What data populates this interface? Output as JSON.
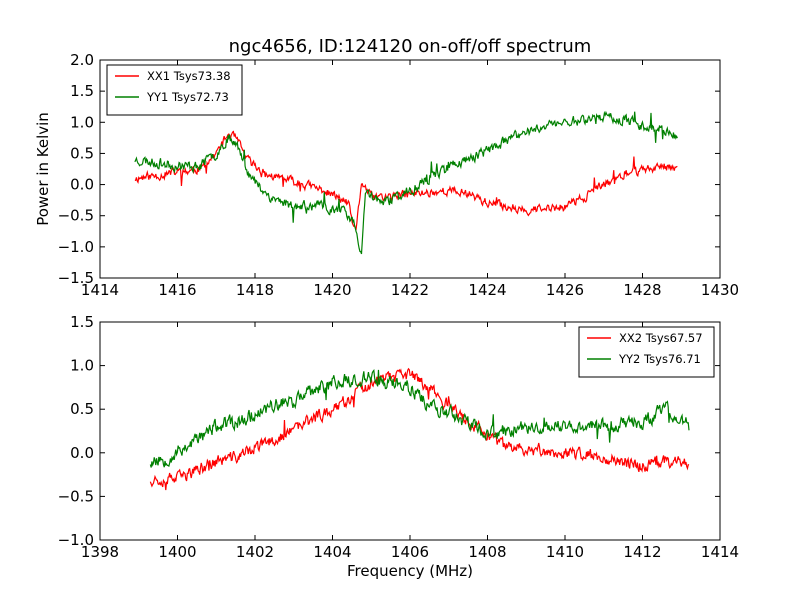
{
  "title": "ngc4656, ID:124120 on-off/off spectrum",
  "chart_data": [
    {
      "type": "line",
      "xlabel": "",
      "ylabel": "Power in Kelvin",
      "xlim": [
        1414,
        1430
      ],
      "ylim": [
        -1.5,
        2.0
      ],
      "xticks": [
        1414,
        1416,
        1418,
        1420,
        1422,
        1424,
        1426,
        1428,
        1430
      ],
      "xtick_labels": [
        "1414",
        "1416",
        "1418",
        "1420",
        "1422",
        "1424",
        "1426",
        "1428",
        "1430"
      ],
      "yticks": [
        -1.5,
        -1.0,
        -0.5,
        0.0,
        0.5,
        1.0,
        1.5,
        2.0
      ],
      "ytick_labels": [
        "−1.5",
        "−1.0",
        "−0.5",
        "0.0",
        "0.5",
        "1.0",
        "1.5",
        "2.0"
      ],
      "grid": false,
      "legend_position": "top-left",
      "x_range": [
        1414.9,
        1428.9
      ],
      "series": [
        {
          "name": "XX1 Tsys73.38",
          "color": "#ff0000",
          "noise": 0.07,
          "seed": 11,
          "points": [
            [
              1414.9,
              0.1
            ],
            [
              1415.5,
              0.15
            ],
            [
              1416.0,
              0.2
            ],
            [
              1416.6,
              0.25
            ],
            [
              1417.0,
              0.5
            ],
            [
              1417.3,
              0.8
            ],
            [
              1417.5,
              0.75
            ],
            [
              1417.8,
              0.4
            ],
            [
              1418.3,
              0.15
            ],
            [
              1419.0,
              0.05
            ],
            [
              1419.8,
              -0.1
            ],
            [
              1420.4,
              -0.3
            ],
            [
              1420.6,
              -0.8
            ],
            [
              1420.75,
              0.05
            ],
            [
              1421.0,
              -0.2
            ],
            [
              1421.5,
              -0.2
            ],
            [
              1422.0,
              -0.15
            ],
            [
              1423.0,
              -0.1
            ],
            [
              1423.6,
              -0.15
            ],
            [
              1424.0,
              -0.3
            ],
            [
              1424.5,
              -0.35
            ],
            [
              1425.0,
              -0.4
            ],
            [
              1425.5,
              -0.4
            ],
            [
              1426.0,
              -0.35
            ],
            [
              1426.5,
              -0.2
            ],
            [
              1427.0,
              0.0
            ],
            [
              1427.5,
              0.15
            ],
            [
              1428.0,
              0.25
            ],
            [
              1428.9,
              0.3
            ]
          ]
        },
        {
          "name": "YY1 Tsys72.73",
          "color": "#008000",
          "noise": 0.08,
          "seed": 23,
          "points": [
            [
              1414.9,
              0.4
            ],
            [
              1415.5,
              0.35
            ],
            [
              1416.0,
              0.3
            ],
            [
              1416.6,
              0.3
            ],
            [
              1417.0,
              0.5
            ],
            [
              1417.3,
              0.75
            ],
            [
              1417.5,
              0.7
            ],
            [
              1417.9,
              0.1
            ],
            [
              1418.4,
              -0.2
            ],
            [
              1419.0,
              -0.35
            ],
            [
              1419.6,
              -0.35
            ],
            [
              1420.2,
              -0.4
            ],
            [
              1420.55,
              -0.6
            ],
            [
              1420.75,
              -1.2
            ],
            [
              1420.85,
              -0.1
            ],
            [
              1421.3,
              -0.3
            ],
            [
              1422.0,
              -0.1
            ],
            [
              1422.5,
              0.1
            ],
            [
              1423.0,
              0.3
            ],
            [
              1423.5,
              0.4
            ],
            [
              1424.0,
              0.55
            ],
            [
              1424.5,
              0.7
            ],
            [
              1425.0,
              0.85
            ],
            [
              1425.5,
              0.95
            ],
            [
              1426.0,
              1.0
            ],
            [
              1426.5,
              1.05
            ],
            [
              1427.0,
              1.1
            ],
            [
              1427.5,
              1.05
            ],
            [
              1428.0,
              0.95
            ],
            [
              1428.5,
              0.9
            ],
            [
              1428.9,
              0.75
            ]
          ]
        }
      ]
    },
    {
      "type": "line",
      "xlabel": "Frequency (MHz)",
      "ylabel": "",
      "xlim": [
        1398,
        1414
      ],
      "ylim": [
        -1.0,
        1.5
      ],
      "xticks": [
        1398,
        1400,
        1402,
        1404,
        1406,
        1408,
        1410,
        1412,
        1414
      ],
      "xtick_labels": [
        "1398",
        "1400",
        "1402",
        "1404",
        "1406",
        "1408",
        "1410",
        "1412",
        "1414"
      ],
      "yticks": [
        -1.0,
        -0.5,
        0.0,
        0.5,
        1.0,
        1.5
      ],
      "ytick_labels": [
        "−1.0",
        "−0.5",
        "0.0",
        "0.5",
        "1.0",
        "1.5"
      ],
      "grid": false,
      "legend_position": "top-right",
      "x_range": [
        1399.3,
        1413.2
      ],
      "series": [
        {
          "name": "XX2 Tsys67.57",
          "color": "#ff0000",
          "noise": 0.07,
          "seed": 37,
          "points": [
            [
              1399.3,
              -0.3
            ],
            [
              1400.0,
              -0.3
            ],
            [
              1400.5,
              -0.2
            ],
            [
              1401.0,
              -0.1
            ],
            [
              1401.5,
              -0.05
            ],
            [
              1402.0,
              0.05
            ],
            [
              1402.5,
              0.15
            ],
            [
              1403.0,
              0.25
            ],
            [
              1403.5,
              0.4
            ],
            [
              1404.0,
              0.5
            ],
            [
              1404.5,
              0.65
            ],
            [
              1405.0,
              0.8
            ],
            [
              1405.5,
              0.85
            ],
            [
              1406.0,
              0.9
            ],
            [
              1406.5,
              0.75
            ],
            [
              1407.0,
              0.55
            ],
            [
              1407.5,
              0.35
            ],
            [
              1408.0,
              0.2
            ],
            [
              1408.5,
              0.05
            ],
            [
              1409.0,
              0.05
            ],
            [
              1410.0,
              0.0
            ],
            [
              1411.0,
              -0.05
            ],
            [
              1411.5,
              -0.1
            ],
            [
              1412.0,
              -0.15
            ],
            [
              1412.5,
              -0.1
            ],
            [
              1413.2,
              -0.1
            ]
          ]
        },
        {
          "name": "YY2 Tsys76.71",
          "color": "#008000",
          "noise": 0.08,
          "seed": 53,
          "points": [
            [
              1399.3,
              -0.1
            ],
            [
              1399.8,
              -0.05
            ],
            [
              1400.3,
              0.1
            ],
            [
              1401.0,
              0.3
            ],
            [
              1401.5,
              0.35
            ],
            [
              1402.0,
              0.45
            ],
            [
              1402.5,
              0.55
            ],
            [
              1403.0,
              0.6
            ],
            [
              1403.5,
              0.7
            ],
            [
              1404.0,
              0.8
            ],
            [
              1404.5,
              0.85
            ],
            [
              1405.0,
              0.85
            ],
            [
              1405.5,
              0.8
            ],
            [
              1406.0,
              0.75
            ],
            [
              1406.5,
              0.55
            ],
            [
              1407.0,
              0.45
            ],
            [
              1407.5,
              0.35
            ],
            [
              1408.0,
              0.2
            ],
            [
              1408.5,
              0.25
            ],
            [
              1409.0,
              0.3
            ],
            [
              1410.0,
              0.3
            ],
            [
              1411.0,
              0.3
            ],
            [
              1412.0,
              0.35
            ],
            [
              1412.6,
              0.5
            ],
            [
              1413.2,
              0.3
            ]
          ]
        }
      ]
    }
  ]
}
